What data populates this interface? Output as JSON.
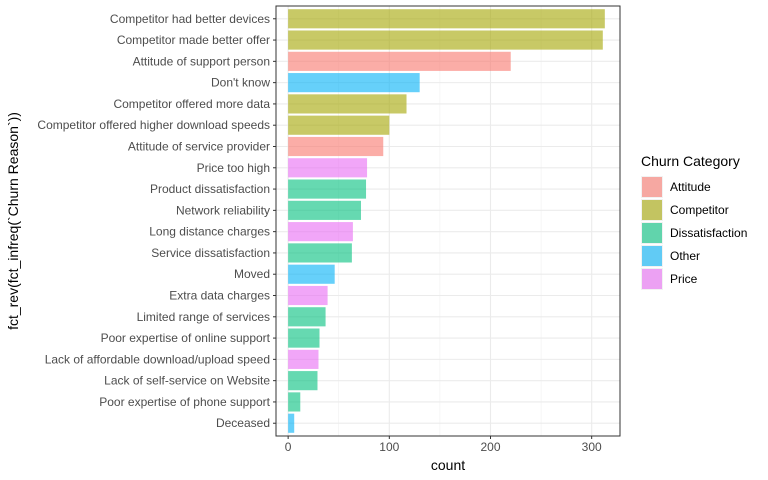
{
  "chart_data": {
    "type": "bar",
    "orientation": "horizontal",
    "xlabel": "count",
    "ylabel": "fct_rev(fct_infreq(`Churn Reason`))",
    "xlim": [
      -12,
      328
    ],
    "xticks": [
      0,
      100,
      200,
      300
    ],
    "grid": true,
    "legend": {
      "title": "Churn Category",
      "position": "right",
      "entries": [
        {
          "name": "Attitude",
          "color": "#F8766D"
        },
        {
          "name": "Competitor",
          "color": "#A3A500"
        },
        {
          "name": "Dissatisfaction",
          "color": "#00BF7D"
        },
        {
          "name": "Other",
          "color": "#00B0F6"
        },
        {
          "name": "Price",
          "color": "#E76BF3"
        }
      ]
    },
    "bars": [
      {
        "label": "Competitor had better devices",
        "value": 313,
        "category": "Competitor"
      },
      {
        "label": "Competitor made better offer",
        "value": 311,
        "category": "Competitor"
      },
      {
        "label": "Attitude of support person",
        "value": 220,
        "category": "Attitude"
      },
      {
        "label": "Don't know",
        "value": 130,
        "category": "Other"
      },
      {
        "label": "Competitor offered more data",
        "value": 117,
        "category": "Competitor"
      },
      {
        "label": "Competitor offered higher download speeds",
        "value": 100,
        "category": "Competitor"
      },
      {
        "label": "Attitude of service provider",
        "value": 94,
        "category": "Attitude"
      },
      {
        "label": "Price too high",
        "value": 78,
        "category": "Price"
      },
      {
        "label": "Product dissatisfaction",
        "value": 77,
        "category": "Dissatisfaction"
      },
      {
        "label": "Network reliability",
        "value": 72,
        "category": "Dissatisfaction"
      },
      {
        "label": "Long distance charges",
        "value": 64,
        "category": "Price"
      },
      {
        "label": "Service dissatisfaction",
        "value": 63,
        "category": "Dissatisfaction"
      },
      {
        "label": "Moved",
        "value": 46,
        "category": "Other"
      },
      {
        "label": "Extra data charges",
        "value": 39,
        "category": "Price"
      },
      {
        "label": "Limited range of services",
        "value": 37,
        "category": "Dissatisfaction"
      },
      {
        "label": "Poor expertise of online support",
        "value": 31,
        "category": "Dissatisfaction"
      },
      {
        "label": "Lack of affordable download/upload speed",
        "value": 30,
        "category": "Price"
      },
      {
        "label": "Lack of self-service on Website",
        "value": 29,
        "category": "Dissatisfaction"
      },
      {
        "label": "Poor expertise of phone support",
        "value": 12,
        "category": "Dissatisfaction"
      },
      {
        "label": "Deceased",
        "value": 6,
        "category": "Other"
      }
    ]
  }
}
